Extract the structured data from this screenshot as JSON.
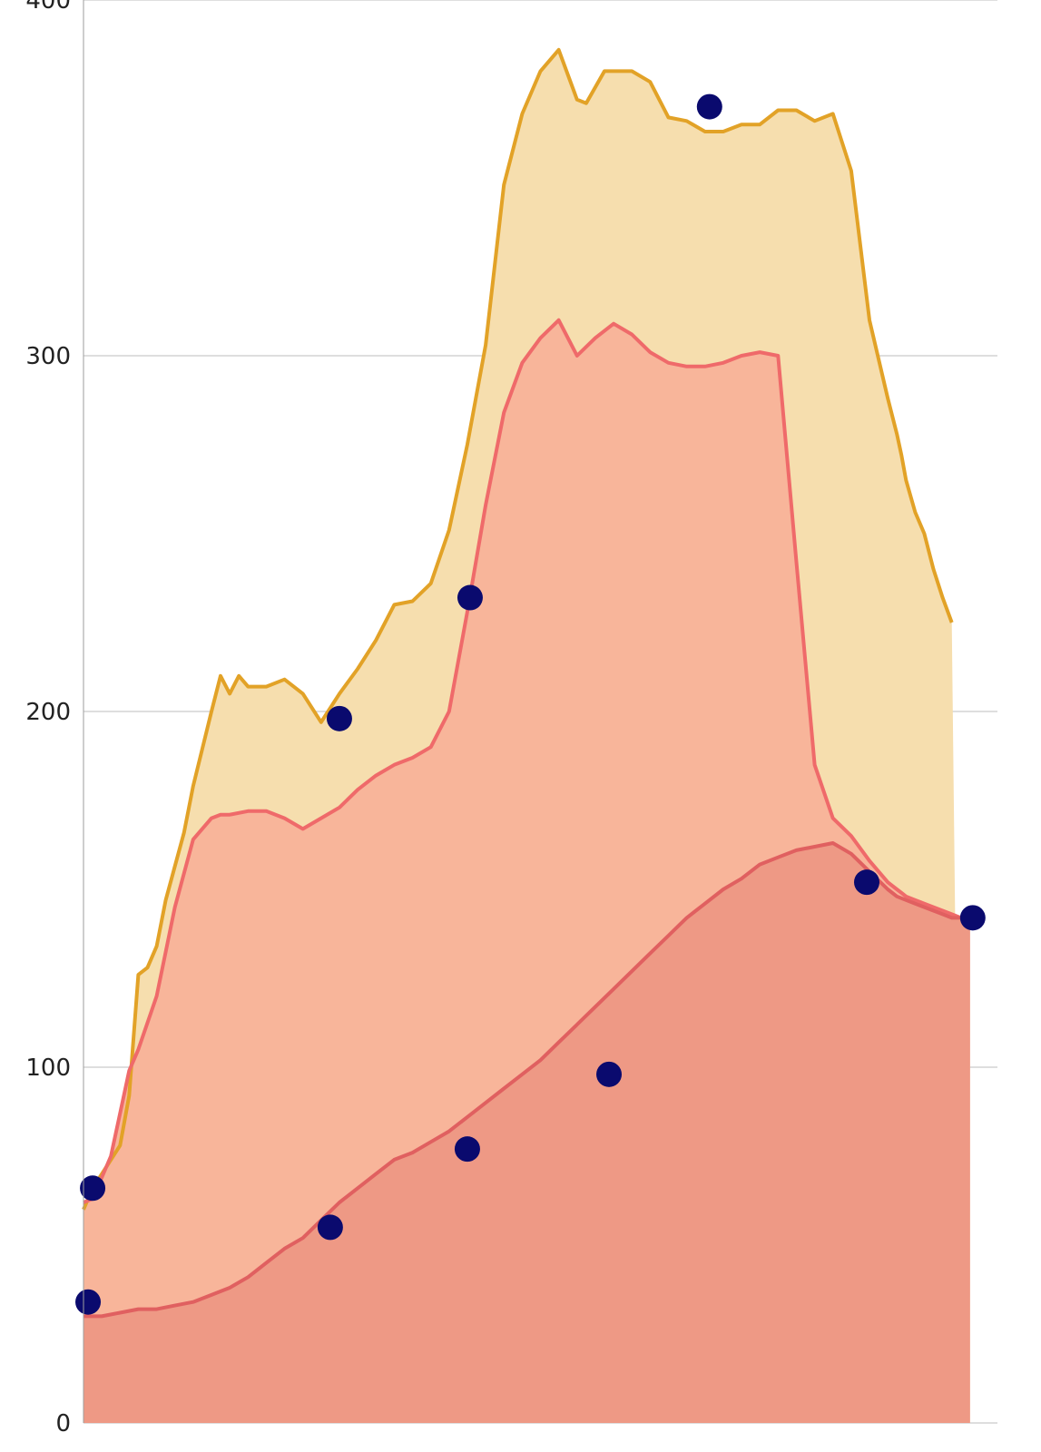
{
  "chart_data": {
    "type": "area",
    "title": "",
    "xlabel": "",
    "ylabel": "",
    "ylim": [
      0,
      400
    ],
    "y_ticks": [
      "0",
      "100",
      "200",
      "300",
      "400"
    ],
    "grid": true,
    "legend": "none",
    "x_range": [
      0,
      100
    ],
    "series": [
      {
        "color": "#e2a227",
        "fill": "#f6deae",
        "x": [
          0,
          1,
          4,
          5,
          6,
          7,
          8,
          9,
          11,
          12,
          14,
          15,
          16,
          17,
          18,
          20,
          22,
          24,
          26,
          28,
          30,
          32,
          34,
          36,
          38,
          40,
          42,
          44,
          46,
          48,
          50,
          52,
          54,
          55,
          57,
          60,
          62,
          64,
          66,
          68,
          70,
          72,
          74,
          76,
          78,
          80,
          82,
          84,
          86,
          88,
          89,
          89.5,
          90,
          91,
          92,
          93,
          94,
          95,
          96,
          97,
          98,
          99,
          100
        ],
        "values": [
          60,
          66,
          78,
          92,
          126,
          128,
          134,
          147,
          166,
          179,
          200,
          210,
          205,
          210,
          207,
          207,
          209,
          205,
          197,
          205,
          212,
          220,
          230,
          231,
          236,
          251,
          275,
          303,
          348,
          368,
          380,
          386,
          372,
          371,
          380,
          380,
          377,
          367,
          366,
          363,
          363,
          365,
          365,
          369,
          369,
          366,
          368,
          352,
          310,
          288,
          278,
          272,
          265,
          256,
          250,
          240,
          232,
          225,
          0,
          0,
          0,
          0,
          0
        ]
      },
      {
        "color": "#ef6a6a",
        "fill": "#f8b59a",
        "x": [
          0,
          1,
          3,
          5,
          6,
          8,
          10,
          12,
          14,
          15,
          16,
          18,
          20,
          22,
          24,
          26,
          28,
          30,
          32,
          34,
          36,
          38,
          40,
          42,
          44,
          46,
          48,
          50,
          52,
          54,
          56,
          58,
          60,
          62,
          64,
          66,
          68,
          70,
          72,
          74,
          76,
          78,
          80,
          82,
          84,
          86,
          88,
          89,
          89.5,
          90,
          91,
          92,
          93,
          94,
          95,
          96,
          97
        ],
        "values": [
          62,
          63,
          75,
          99,
          105,
          120,
          145,
          164,
          170,
          171,
          171,
          172,
          172,
          170,
          167,
          170,
          173,
          178,
          182,
          185,
          187,
          190,
          200,
          228,
          258,
          284,
          298,
          305,
          310,
          300,
          305,
          309,
          306,
          301,
          298,
          297,
          297,
          298,
          300,
          301,
          300,
          242,
          185,
          170,
          165,
          158,
          152,
          150,
          149,
          148,
          147,
          146,
          145,
          144,
          143,
          142,
          142
        ]
      },
      {
        "color": "#e06060",
        "fill": "#ee9985",
        "x": [
          0,
          2,
          4,
          6,
          8,
          10,
          12,
          14,
          16,
          18,
          20,
          22,
          24,
          26,
          28,
          30,
          32,
          34,
          36,
          38,
          40,
          42,
          44,
          46,
          48,
          50,
          52,
          54,
          56,
          58,
          60,
          62,
          64,
          66,
          68,
          70,
          72,
          74,
          76,
          78,
          80,
          82,
          84,
          86,
          88,
          89,
          90,
          91,
          92,
          93,
          94,
          95,
          96,
          97
        ],
        "values": [
          30,
          30,
          31,
          32,
          32,
          33,
          34,
          36,
          38,
          41,
          45,
          49,
          52,
          57,
          62,
          66,
          70,
          74,
          76,
          79,
          82,
          86,
          90,
          94,
          98,
          102,
          107,
          112,
          117,
          122,
          127,
          132,
          137,
          142,
          146,
          150,
          153,
          157,
          159,
          161,
          162,
          163,
          160,
          155,
          150,
          148,
          147,
          146,
          145,
          144,
          143,
          142,
          142,
          142
        ]
      }
    ],
    "markers": {
      "color": "#0a0a6e",
      "points": [
        {
          "x": 1,
          "y": 66
        },
        {
          "x": 28,
          "y": 198
        },
        {
          "x": 42.3,
          "y": 232
        },
        {
          "x": 68.5,
          "y": 370
        },
        {
          "x": 0.5,
          "y": 34
        },
        {
          "x": 27,
          "y": 55
        },
        {
          "x": 42,
          "y": 77
        },
        {
          "x": 57.5,
          "y": 98
        },
        {
          "x": 85.7,
          "y": 152
        },
        {
          "x": 97.3,
          "y": 142
        }
      ]
    }
  }
}
